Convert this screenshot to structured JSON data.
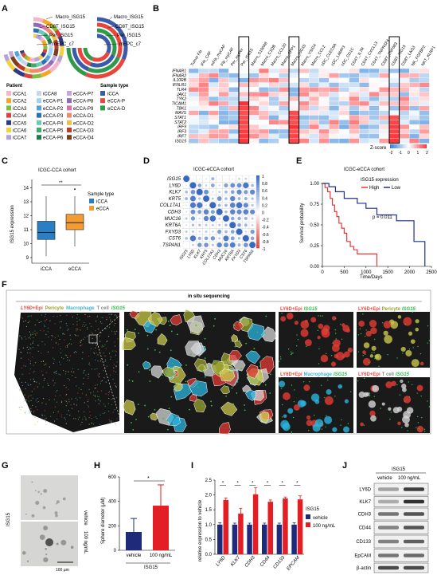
{
  "figure": {
    "panel_labels": [
      "A",
      "B",
      "C",
      "D",
      "E",
      "F",
      "G",
      "H",
      "I",
      "J"
    ]
  },
  "panel_a": {
    "ring_labels_left": [
      "Macro_ISG15",
      "CD8T_ISG15",
      "Per_ISG15",
      "mEPC_c7"
    ],
    "ring_labels_right": [
      "Macro_ISG15",
      "CD8T_ISG15",
      "Per_ISG15",
      "mEPC_c7"
    ],
    "patient_title": "Patient",
    "patients": [
      {
        "name": "iCCA1",
        "color": "#f2b6c8"
      },
      {
        "name": "iCCA8",
        "color": "#c9d6ea"
      },
      {
        "name": "eCCA-P7",
        "color": "#c6a8d8"
      },
      {
        "name": "iCCA2",
        "color": "#f5a623"
      },
      {
        "name": "eCCA-P1",
        "color": "#9fd3f0"
      },
      {
        "name": "eCCA-P8",
        "color": "#8e6cb8"
      },
      {
        "name": "iCCA3",
        "color": "#7fbf3f"
      },
      {
        "name": "eCCA-P2",
        "color": "#5aa0d8"
      },
      {
        "name": "eCCA-P9",
        "color": "#d86fb0"
      },
      {
        "name": "iCCA4",
        "color": "#d9433a"
      },
      {
        "name": "eCCA-P3",
        "color": "#2a6fb5"
      },
      {
        "name": "eCCA-D1",
        "color": "#f08a6a"
      },
      {
        "name": "iCCA5",
        "color": "#2e3a87"
      },
      {
        "name": "eCCA-P4",
        "color": "#6fc9b6"
      },
      {
        "name": "eCCA-D2",
        "color": "#e8c24a"
      },
      {
        "name": "iCCA6",
        "color": "#f4d03f"
      },
      {
        "name": "eCCA-P5",
        "color": "#3fa86b"
      },
      {
        "name": "eCCA-D3",
        "color": "#c0392b"
      },
      {
        "name": "iCCA7",
        "color": "#b7a1d9"
      },
      {
        "name": "eCCA-P6",
        "color": "#1f7a4a"
      },
      {
        "name": "eCCA-D4",
        "color": "#7b3f1f"
      }
    ],
    "sample_title": "Sample type",
    "sample_types": [
      {
        "name": "iCCA",
        "color": "#3b5aa8"
      },
      {
        "name": "eCCA-P",
        "color": "#e8453c"
      },
      {
        "name": "eCCA-D",
        "color": "#2e9a4a"
      }
    ]
  },
  "panel_b": {
    "columns": [
      "Tumor Fib",
      "iFib_CAF",
      "mFib_myCAF",
      "Fib_myCAF",
      "Per_myPer",
      "Per_ISG15",
      "Macro_S100A8",
      "Macro_C1QB",
      "Macro_CCL20",
      "Macro_SPP1",
      "Macro_ISG15",
      "Macro_VSIG4",
      "Macro_CCL2",
      "cDC_CLEC9A",
      "cDC_LAMP3",
      "cDC_CD1C",
      "CD4T_IL7R",
      "CD4T_CXCL13",
      "CD4T_TNFRSF4",
      "CD8T_ZNF683",
      "CD8T_ISG15",
      "CD8T_LAG3",
      "NK_FGFBP2",
      "NKT_KLRF1"
    ],
    "rows": [
      "IFNAR1",
      "IFNAR2",
      "IL10RB",
      "IFNLR1",
      "TLR4",
      "JAK1",
      "TYK2",
      "TICAM1",
      "TBK1",
      "MAVS",
      "STAT1",
      "STAT2",
      "IRF9",
      "IRF3",
      "IRF7",
      "ISG15"
    ],
    "zscore_title": "Z-score",
    "zscore_ticks": [
      "-2",
      "-1",
      "0",
      "1",
      "2"
    ]
  },
  "panel_c": {
    "title": "ICGC-CCA cohort",
    "ylabel": "ISG15 expression",
    "legend_title": "Sample type",
    "significance": "**",
    "chart_data": {
      "type": "box",
      "categories": [
        "iCCA",
        "eCCA"
      ],
      "colors": [
        "#2a7fc4",
        "#f39c34"
      ],
      "ylim": [
        8.6,
        14.6
      ],
      "yticks": [
        9,
        10,
        11,
        12,
        13,
        14
      ],
      "boxes": [
        {
          "name": "iCCA",
          "whisker_low": 9.1,
          "q1": 10.3,
          "median": 10.8,
          "q3": 11.6,
          "whisker_high": 13.4,
          "outliers": []
        },
        {
          "name": "eCCA",
          "whisker_low": 9.8,
          "q1": 11.0,
          "median": 11.5,
          "q3": 12.1,
          "whisker_high": 13.4,
          "outliers": [
            13.9
          ]
        }
      ]
    }
  },
  "panel_d": {
    "title": "ICGC-eCCA cohort",
    "genes": [
      "ISG15",
      "LY6D",
      "KLK7",
      "KRT5",
      "COL17A1",
      "CDH3",
      "MUC16",
      "KRT6A",
      "FXYD3",
      "CST6",
      "TSPAN1"
    ],
    "colorbar_ticks": [
      "1",
      "0.8",
      "0.6",
      "0.4",
      "0.2",
      "0",
      "-0.2",
      "-0.4",
      "-0.6",
      "-0.8",
      "-1"
    ]
  },
  "panel_e": {
    "title": "ICGC-eCCA cohort",
    "legend_title": "ISG15 expression",
    "legend_high": "High",
    "legend_low": "Low",
    "pvalue": "p = 0.011",
    "ylabel": "Survival probability",
    "xlabel": "Time/Days",
    "chart_data": {
      "type": "line",
      "xlim": [
        0,
        2500
      ],
      "ylim": [
        0,
        1
      ],
      "xticks": [
        0,
        500,
        1000,
        1500,
        2000,
        2500
      ],
      "yticks": [
        "0.00",
        "0.25",
        "0.50",
        "0.75",
        "1.00"
      ],
      "series": [
        {
          "name": "High",
          "color": "#e8353a",
          "steps": [
            [
              0,
              1.0
            ],
            [
              60,
              0.95
            ],
            [
              120,
              0.9
            ],
            [
              180,
              0.82
            ],
            [
              230,
              0.74
            ],
            [
              280,
              0.66
            ],
            [
              330,
              0.6
            ],
            [
              380,
              0.52
            ],
            [
              440,
              0.46
            ],
            [
              500,
              0.4
            ],
            [
              560,
              0.3
            ],
            [
              640,
              0.24
            ],
            [
              720,
              0.2
            ],
            [
              800,
              0.15
            ],
            [
              1250,
              0.0
            ]
          ]
        },
        {
          "name": "Low",
          "color": "#1f2f8a",
          "steps": [
            [
              0,
              1.0
            ],
            [
              150,
              0.96
            ],
            [
              300,
              0.9
            ],
            [
              500,
              0.82
            ],
            [
              800,
              0.76
            ],
            [
              1000,
              0.7
            ],
            [
              1250,
              0.62
            ],
            [
              1700,
              0.55
            ],
            [
              2100,
              0.3
            ],
            [
              2350,
              0.0
            ]
          ]
        }
      ]
    }
  },
  "panel_f": {
    "header": "in situ sequencing",
    "main_legend": [
      {
        "text": "LY6D",
        "color": "#e8453c",
        "italic": true
      },
      {
        "text": "+Epi",
        "color": "#e8453c",
        "italic": false
      },
      {
        "text": "Pericyte",
        "color": "#b9c24a",
        "italic": false
      },
      {
        "text": "Macrophage",
        "color": "#3fb4d8",
        "italic": false
      },
      {
        "text": "T cell",
        "color": "#e5e5e5",
        "italic": false
      },
      {
        "text": "ISG15",
        "color": "#2fc24a",
        "italic": true
      }
    ],
    "inset_titles": [
      [
        "LY6D+Epi",
        "ISG15"
      ],
      [
        "LY6D+Epi",
        "Pericyte",
        "ISG15"
      ],
      [
        "LY6D+Epi",
        "Macrophage",
        "ISG15"
      ],
      [
        "LY6D+Epi",
        "T cell",
        "ISG15"
      ]
    ]
  },
  "panel_g": {
    "condition_label": "ISG15",
    "top_label": "vehicle",
    "bottom_label": "100 ng/mL",
    "scale_bar": "100 µm"
  },
  "panel_h": {
    "ylabel": "Sphere diameter (µM)",
    "xgroup": "ISG15",
    "significance": "*",
    "chart_data": {
      "type": "bar",
      "categories": [
        "vehicle",
        "100 ng/mL"
      ],
      "values": [
        150,
        365
      ],
      "errors": [
        110,
        170
      ],
      "colors": [
        "#1f2a7a",
        "#e31e24"
      ],
      "ylim": [
        0,
        600
      ],
      "yticks": [
        0,
        200,
        400,
        600
      ]
    }
  },
  "panel_i": {
    "ylabel": "relative expression to vehicle",
    "legend_title": "ISG15",
    "legend_items": [
      "vehicle",
      "100 ng/mL"
    ],
    "significance": "*",
    "chart_data": {
      "type": "bar",
      "categories": [
        "LY6D",
        "KLK7",
        "CDH3",
        "CD44",
        "CD133",
        "EPCAM"
      ],
      "ylim": [
        0,
        2.5
      ],
      "yticks": [
        0.0,
        0.5,
        1.0,
        1.5,
        2.0,
        2.5
      ],
      "series": [
        {
          "name": "vehicle",
          "color": "#1f2a7a",
          "values": [
            1.0,
            1.0,
            1.0,
            1.0,
            1.0,
            1.0
          ],
          "errors": [
            0.06,
            0.05,
            0.05,
            0.05,
            0.05,
            0.06
          ]
        },
        {
          "name": "100 ng/mL",
          "color": "#e31e24",
          "values": [
            1.83,
            1.37,
            2.02,
            1.77,
            1.88,
            1.85
          ],
          "errors": [
            0.07,
            0.18,
            0.22,
            0.06,
            0.05,
            0.12
          ]
        }
      ]
    }
  },
  "panel_j": {
    "title": "ISG15",
    "col_labels": [
      "vehicle",
      "100 ng/mL"
    ],
    "bands": [
      "LY6D",
      "KLK7",
      "CDH3",
      "CD44",
      "CD133",
      "EpCAM",
      "β-actin"
    ]
  }
}
